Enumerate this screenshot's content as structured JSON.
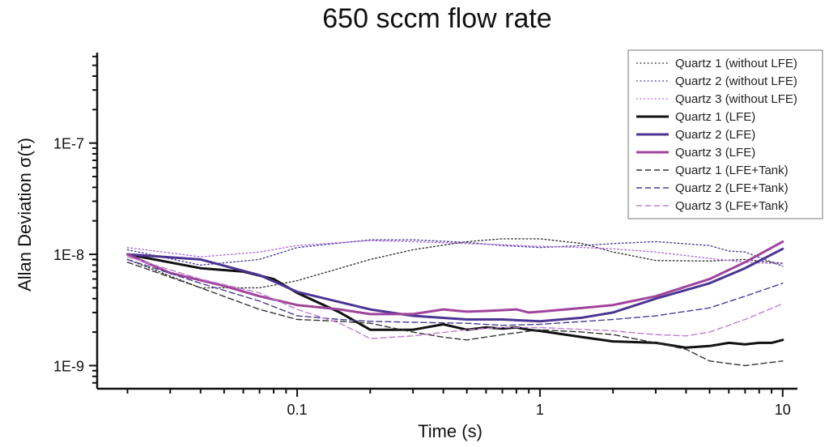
{
  "chart_data": {
    "type": "line",
    "title": "650 sccm flow rate",
    "xlabel": "Time (s)",
    "ylabel": "Allan Deviation σ(τ)",
    "xscale": "log",
    "yscale": "log",
    "xlim": [
      0.015,
      11.5
    ],
    "ylim": [
      6.2e-10,
      6.5e-07
    ],
    "xticks": [
      {
        "value": 0.1,
        "label": "0.1"
      },
      {
        "value": 1,
        "label": "1"
      },
      {
        "value": 10,
        "label": "10"
      }
    ],
    "yticks": [
      {
        "value": 1e-09,
        "label": "1E-9"
      },
      {
        "value": 1e-08,
        "label": "1E-8"
      },
      {
        "value": 1e-07,
        "label": "1E-7"
      }
    ],
    "legend_position": "top-right",
    "series": [
      {
        "name": "Quartz 1 (without LFE)",
        "color": "#333333",
        "style": "dotted",
        "width": 1.4,
        "x": [
          0.02,
          0.04,
          0.07,
          0.1,
          0.2,
          0.3,
          0.5,
          0.7,
          1,
          1.5,
          2,
          3,
          5,
          7,
          10
        ],
        "y": [
          9e-09,
          5e-09,
          5e-09,
          5.8e-09,
          9e-09,
          1.1e-08,
          1.3e-08,
          1.38e-08,
          1.38e-08,
          1.25e-08,
          1.05e-08,
          8.8e-09,
          8.7e-09,
          9e-09,
          8.3e-09
        ]
      },
      {
        "name": "Quartz 2 (without LFE)",
        "color": "#4a3d96",
        "style": "dotted",
        "width": 1.4,
        "x": [
          0.02,
          0.04,
          0.07,
          0.1,
          0.2,
          0.3,
          0.5,
          0.7,
          1,
          1.5,
          2,
          3,
          5,
          6,
          7,
          10
        ],
        "y": [
          1.1e-08,
          8e-09,
          9e-09,
          1.15e-08,
          1.35e-08,
          1.35e-08,
          1.28e-08,
          1.2e-08,
          1.15e-08,
          1.2e-08,
          1.25e-08,
          1.3e-08,
          1.2e-08,
          1.07e-08,
          1.05e-08,
          7.8e-09
        ]
      },
      {
        "name": "Quartz 3 (without LFE)",
        "color": "#b36ad8",
        "style": "dotted",
        "width": 1.4,
        "x": [
          0.02,
          0.04,
          0.07,
          0.1,
          0.2,
          0.3,
          0.5,
          0.7,
          1,
          1.5,
          2,
          3,
          5,
          7,
          10
        ],
        "y": [
          1.15e-08,
          9.5e-09,
          1.05e-08,
          1.2e-08,
          1.33e-08,
          1.3e-08,
          1.25e-08,
          1.22e-08,
          1.18e-08,
          1.15e-08,
          1.12e-08,
          1.05e-08,
          9.2e-09,
          8.5e-09,
          8.2e-09
        ]
      },
      {
        "name": "Quartz 1 (LFE)",
        "color": "#111111",
        "style": "solid",
        "width": 3,
        "x": [
          0.02,
          0.04,
          0.06,
          0.08,
          0.1,
          0.15,
          0.2,
          0.3,
          0.4,
          0.5,
          0.6,
          0.7,
          0.8,
          0.9,
          1,
          1.5,
          2,
          3,
          4,
          5,
          6,
          7,
          8,
          9,
          10
        ],
        "y": [
          1e-08,
          7.5e-09,
          7e-09,
          6e-09,
          4.5e-09,
          3e-09,
          2.1e-09,
          2.1e-09,
          2.35e-09,
          2.1e-09,
          2.2e-09,
          2.15e-09,
          2.2e-09,
          2.1e-09,
          2.05e-09,
          1.8e-09,
          1.65e-09,
          1.6e-09,
          1.45e-09,
          1.5e-09,
          1.6e-09,
          1.55e-09,
          1.6e-09,
          1.6e-09,
          1.7e-09
        ]
      },
      {
        "name": "Quartz 2 (LFE)",
        "color": "#4b3592",
        "style": "solid",
        "width": 3,
        "x": [
          0.02,
          0.04,
          0.07,
          0.1,
          0.2,
          0.3,
          0.5,
          0.7,
          1,
          1.5,
          2,
          3,
          5,
          7,
          10
        ],
        "y": [
          1e-08,
          9e-09,
          6.5e-09,
          4.6e-09,
          3.2e-09,
          2.8e-09,
          2.6e-09,
          2.6e-09,
          2.5e-09,
          2.7e-09,
          3e-09,
          4e-09,
          5.5e-09,
          7.5e-09,
          1.12e-08
        ]
      },
      {
        "name": "Quartz 3 (LFE)",
        "color": "#a0449b",
        "style": "solid",
        "width": 3,
        "x": [
          0.02,
          0.03,
          0.05,
          0.07,
          0.1,
          0.15,
          0.2,
          0.3,
          0.4,
          0.5,
          0.6,
          0.7,
          0.8,
          0.9,
          1,
          1.5,
          2,
          3,
          5,
          7,
          10
        ],
        "y": [
          1e-08,
          6.8e-09,
          5.2e-09,
          4.2e-09,
          3.5e-09,
          3.2e-09,
          2.9e-09,
          2.9e-09,
          3.2e-09,
          3.05e-09,
          3.1e-09,
          3.15e-09,
          3.2e-09,
          3e-09,
          3.05e-09,
          3.3e-09,
          3.5e-09,
          4.2e-09,
          6e-09,
          8.5e-09,
          1.3e-08
        ]
      },
      {
        "name": "Quartz 1 (LFE+Tank)",
        "color": "#333333",
        "style": "dashed",
        "width": 1.4,
        "x": [
          0.02,
          0.04,
          0.07,
          0.1,
          0.15,
          0.2,
          0.3,
          0.4,
          0.5,
          0.7,
          1,
          1.5,
          2,
          3,
          4,
          5,
          7,
          10
        ],
        "y": [
          8.5e-09,
          5e-09,
          3.2e-09,
          2.6e-09,
          2.5e-09,
          2.4e-09,
          2e-09,
          1.8e-09,
          1.7e-09,
          1.9e-09,
          2.1e-09,
          2e-09,
          1.9e-09,
          1.6e-09,
          1.4e-09,
          1.1e-09,
          1e-09,
          1.1e-09
        ]
      },
      {
        "name": "Quartz 2 (LFE+Tank)",
        "color": "#4a3d96",
        "style": "dashed",
        "width": 1.4,
        "x": [
          0.02,
          0.04,
          0.07,
          0.1,
          0.15,
          0.2,
          0.3,
          0.5,
          0.7,
          1,
          2,
          3,
          5,
          7,
          10
        ],
        "y": [
          9e-09,
          5.5e-09,
          3.8e-09,
          2.8e-09,
          2.6e-09,
          2.5e-09,
          2.45e-09,
          2.4e-09,
          2.3e-09,
          2.35e-09,
          2.6e-09,
          2.8e-09,
          3.3e-09,
          4.2e-09,
          5.5e-09
        ]
      },
      {
        "name": "Quartz 3 (LFE+Tank)",
        "color": "#c07fd0",
        "style": "dashed",
        "width": 1.4,
        "x": [
          0.02,
          0.04,
          0.07,
          0.1,
          0.15,
          0.2,
          0.3,
          0.5,
          0.7,
          1,
          2,
          3,
          4,
          5,
          7,
          10
        ],
        "y": [
          9.5e-09,
          6e-09,
          4.5e-09,
          3.2e-09,
          2.4e-09,
          1.75e-09,
          1.85e-09,
          2.1e-09,
          2.2e-09,
          2.2e-09,
          2.05e-09,
          1.9e-09,
          1.85e-09,
          2e-09,
          2.6e-09,
          3.6e-09
        ]
      }
    ]
  }
}
